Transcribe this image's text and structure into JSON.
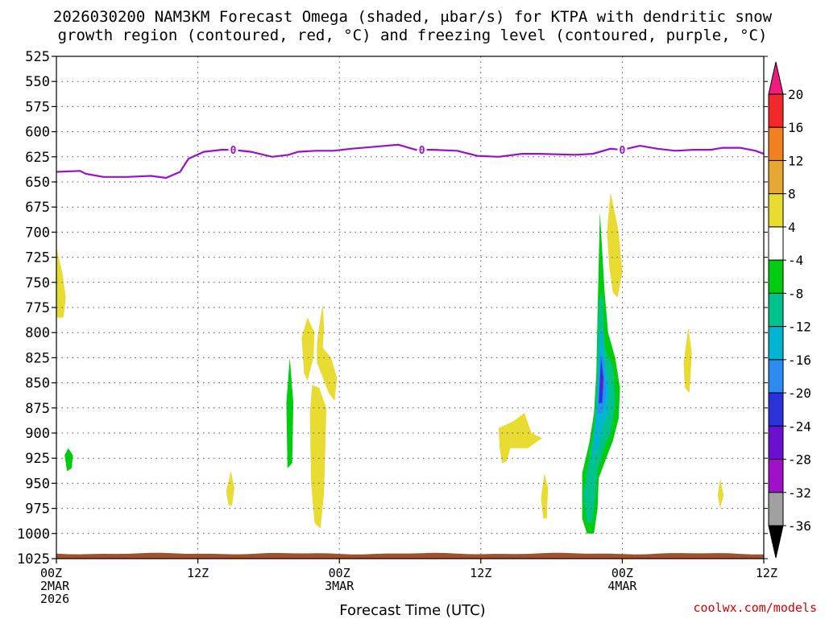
{
  "title_line1": "2026030200 NAM3KM Forecast Omega (shaded, μbar/s) for KTPA with dendritic snow",
  "title_line2": "growth region (contoured, red, °C) and freezing level (contoured, purple, °C)",
  "x_axis_label": "Forecast Time (UTC)",
  "credit": "coolwx.com/models",
  "chart_data": {
    "type": "heatmap",
    "x_unit": "forecast hour",
    "x_range": [
      0,
      60
    ],
    "y_unit": "hPa",
    "y_range": [
      525,
      1025
    ],
    "y_ticks": [
      "525",
      "550",
      "575",
      "600",
      "625",
      "650",
      "675",
      "700",
      "725",
      "750",
      "775",
      "800",
      "825",
      "850",
      "875",
      "900",
      "925",
      "950",
      "975",
      "1000",
      "1025"
    ],
    "x_ticks": [
      {
        "hour": 0,
        "lines": [
          "00Z",
          "2MAR",
          "2026"
        ]
      },
      {
        "hour": 12,
        "lines": [
          "12Z"
        ]
      },
      {
        "hour": 24,
        "lines": [
          "00Z",
          "3MAR"
        ]
      },
      {
        "hour": 36,
        "lines": [
          "12Z"
        ]
      },
      {
        "hour": 48,
        "lines": [
          "00Z",
          "4MAR"
        ]
      },
      {
        "hour": 60,
        "lines": [
          "12Z"
        ]
      }
    ],
    "colorbar": {
      "labels": [
        "20",
        "16",
        "12",
        "8",
        "4",
        "-4",
        "-8",
        "-12",
        "-16",
        "-20",
        "-24",
        "-28",
        "-32",
        "-36"
      ],
      "bins": [
        {
          "color": "#ee1c7a",
          "label": "> 20"
        },
        {
          "color": "#f0282a",
          "label": "16 to 20"
        },
        {
          "color": "#f08020",
          "label": "12 to 16"
        },
        {
          "color": "#e6a832",
          "label": "8 to 12"
        },
        {
          "color": "#e8dc32",
          "label": "4 to 8"
        },
        {
          "color": "#ffffff",
          "label": "-4 to 4"
        },
        {
          "color": "#00cc10",
          "label": "-8 to -4"
        },
        {
          "color": "#00c28c",
          "label": "-12 to -8"
        },
        {
          "color": "#00b4d2",
          "label": "-16 to -12"
        },
        {
          "color": "#2a8cf0",
          "label": "-20 to -16"
        },
        {
          "color": "#2a32dc",
          "label": "-24 to -20"
        },
        {
          "color": "#6a10d0",
          "label": "-28 to -24"
        },
        {
          "color": "#a010c8",
          "label": "-32 to -28"
        },
        {
          "color": "#a0a0a0",
          "label": "-36 to -32"
        },
        {
          "color": "#000000",
          "label": "< -36"
        }
      ]
    },
    "freezing_level": {
      "label": "0",
      "color": "#9a10c8",
      "label_hours": [
        15,
        31,
        48
      ],
      "points": [
        [
          0,
          640
        ],
        [
          2,
          639
        ],
        [
          2.5,
          642
        ],
        [
          4,
          645
        ],
        [
          6,
          645
        ],
        [
          8,
          644
        ],
        [
          9.3,
          646
        ],
        [
          10.5,
          640
        ],
        [
          11.2,
          627
        ],
        [
          12.5,
          620
        ],
        [
          14,
          618
        ],
        [
          15,
          618
        ],
        [
          16.5,
          620
        ],
        [
          18.3,
          625
        ],
        [
          19.7,
          623
        ],
        [
          20.5,
          620
        ],
        [
          22,
          619
        ],
        [
          23.5,
          619
        ],
        [
          25,
          617
        ],
        [
          27,
          615
        ],
        [
          29,
          613
        ],
        [
          30.5,
          618
        ],
        [
          32,
          618
        ],
        [
          34,
          619
        ],
        [
          35.7,
          624
        ],
        [
          37.5,
          625
        ],
        [
          39.5,
          622
        ],
        [
          41,
          622
        ],
        [
          44,
          623
        ],
        [
          45.5,
          622
        ],
        [
          47,
          617
        ],
        [
          48,
          618
        ],
        [
          49.5,
          614
        ],
        [
          51,
          617
        ],
        [
          52.5,
          619
        ],
        [
          54,
          618
        ],
        [
          55.5,
          618
        ],
        [
          56.5,
          616
        ],
        [
          58,
          616
        ],
        [
          59.3,
          619
        ],
        [
          60,
          622
        ]
      ]
    },
    "omega_regions": [
      {
        "level": "4 to 8",
        "outline": [
          [
            0,
            715
          ],
          [
            0.5,
            740
          ],
          [
            0.8,
            765
          ],
          [
            0.6,
            785
          ],
          [
            0,
            785
          ]
        ]
      },
      {
        "level": "-8 to -4",
        "outline": [
          [
            0.7,
            922
          ],
          [
            1.0,
            915
          ],
          [
            1.4,
            922
          ],
          [
            1.3,
            935
          ],
          [
            0.9,
            938
          ]
        ]
      },
      {
        "level": "4 to 8",
        "outline": [
          [
            14.4,
            958
          ],
          [
            14.8,
            938
          ],
          [
            15.1,
            955
          ],
          [
            14.9,
            972
          ],
          [
            14.6,
            972
          ]
        ]
      },
      {
        "level": "-8 to -4",
        "outline": [
          [
            19.5,
            870
          ],
          [
            19.8,
            825
          ],
          [
            20.1,
            870
          ],
          [
            20.0,
            930
          ],
          [
            19.6,
            935
          ]
        ]
      },
      {
        "level": "4 to 8",
        "outline": [
          [
            20.8,
            805
          ],
          [
            21.3,
            785
          ],
          [
            21.9,
            800
          ],
          [
            21.8,
            825
          ],
          [
            21.3,
            848
          ],
          [
            21.0,
            840
          ]
        ]
      },
      {
        "level": "4 to 8",
        "outline": [
          [
            21.5,
            880
          ],
          [
            21.7,
            852
          ],
          [
            22.3,
            855
          ],
          [
            22.9,
            875
          ],
          [
            22.7,
            960
          ],
          [
            22.4,
            995
          ],
          [
            21.9,
            990
          ],
          [
            21.6,
            950
          ]
        ]
      },
      {
        "level": "4 to 8",
        "outline": [
          [
            22.1,
            810
          ],
          [
            22.4,
            785
          ],
          [
            22.6,
            772
          ],
          [
            22.7,
            795
          ],
          [
            22.6,
            815
          ],
          [
            23.3,
            825
          ],
          [
            23.8,
            845
          ],
          [
            23.6,
            868
          ],
          [
            23.1,
            860
          ],
          [
            22.5,
            842
          ],
          [
            22.1,
            830
          ]
        ]
      },
      {
        "level": "4 to 8",
        "outline": [
          [
            37.5,
            895
          ],
          [
            38.8,
            888
          ],
          [
            39.7,
            880
          ],
          [
            40.3,
            900
          ],
          [
            41.2,
            905
          ],
          [
            40.0,
            915
          ],
          [
            38.5,
            915
          ],
          [
            38.2,
            928
          ],
          [
            37.8,
            930
          ],
          [
            37.6,
            915
          ]
        ]
      },
      {
        "level": "4 to 8",
        "outline": [
          [
            41.1,
            965
          ],
          [
            41.4,
            940
          ],
          [
            41.7,
            955
          ],
          [
            41.6,
            985
          ],
          [
            41.3,
            985
          ]
        ]
      },
      {
        "level": "4 to 8",
        "outline": [
          [
            46.7,
            700
          ],
          [
            47.0,
            660
          ],
          [
            47.7,
            700
          ],
          [
            48.0,
            740
          ],
          [
            47.6,
            765
          ],
          [
            47.2,
            760
          ],
          [
            46.9,
            735
          ]
        ]
      },
      {
        "level": "4 to 8",
        "outline": [
          [
            53.2,
            830
          ],
          [
            53.6,
            795
          ],
          [
            53.9,
            820
          ],
          [
            53.7,
            860
          ],
          [
            53.3,
            855
          ]
        ]
      },
      {
        "level": "4 to 8",
        "outline": [
          [
            56.1,
            962
          ],
          [
            56.3,
            945
          ],
          [
            56.6,
            962
          ],
          [
            56.3,
            975
          ]
        ]
      },
      {
        "level": "-8 to -4",
        "outline": [
          [
            44.6,
            940
          ],
          [
            45.2,
            910
          ],
          [
            45.6,
            880
          ],
          [
            45.8,
            840
          ],
          [
            45.9,
            780
          ],
          [
            46.1,
            680
          ],
          [
            46.5,
            760
          ],
          [
            46.8,
            800
          ],
          [
            47.4,
            825
          ],
          [
            47.8,
            855
          ],
          [
            47.7,
            885
          ],
          [
            47.2,
            908
          ],
          [
            46.8,
            920
          ],
          [
            46.0,
            945
          ],
          [
            45.9,
            975
          ],
          [
            45.6,
            1000
          ],
          [
            45.0,
            1000
          ],
          [
            44.6,
            985
          ]
        ]
      },
      {
        "level": "-12 to -8",
        "outline": [
          [
            44.7,
            960
          ],
          [
            45.2,
            925
          ],
          [
            45.6,
            895
          ],
          [
            45.9,
            850
          ],
          [
            46.0,
            770
          ],
          [
            46.3,
            760
          ],
          [
            46.5,
            815
          ],
          [
            47.2,
            835
          ],
          [
            47.4,
            870
          ],
          [
            47.0,
            900
          ],
          [
            46.6,
            910
          ],
          [
            45.9,
            935
          ],
          [
            45.7,
            965
          ],
          [
            45.4,
            990
          ],
          [
            45.0,
            988
          ]
        ]
      },
      {
        "level": "-16 to -12",
        "outline": [
          [
            45.5,
            925
          ],
          [
            45.8,
            875
          ],
          [
            46.0,
            800
          ],
          [
            46.3,
            795
          ],
          [
            46.5,
            830
          ],
          [
            46.9,
            855
          ],
          [
            46.8,
            880
          ],
          [
            46.3,
            895
          ],
          [
            45.9,
            915
          ]
        ]
      },
      {
        "level": "-20 to -16",
        "outline": [
          [
            45.9,
            880
          ],
          [
            46.1,
            820
          ],
          [
            46.4,
            828
          ],
          [
            46.6,
            860
          ],
          [
            46.3,
            880
          ]
        ]
      },
      {
        "level": "-24 to -20",
        "outline": [
          [
            46.0,
            870
          ],
          [
            46.2,
            825
          ],
          [
            46.4,
            845
          ],
          [
            46.3,
            870
          ]
        ]
      },
      {
        "level": "-28 to -24",
        "outline": [
          [
            46.15,
            850
          ],
          [
            46.25,
            838
          ],
          [
            46.35,
            852
          ],
          [
            46.25,
            860
          ]
        ]
      }
    ],
    "terrain": {
      "color": "#a0522d",
      "pressure": 1020
    }
  }
}
